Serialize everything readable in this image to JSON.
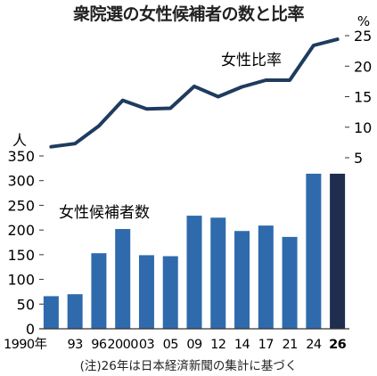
{
  "chart_data": {
    "type": "bar+line",
    "title": "衆院選の女性候補者の数と比率",
    "note": "(注)26年は日本経済新聞の集計に基づく",
    "categories": [
      "1990年",
      "93",
      "96",
      "2000",
      "03",
      "05",
      "09",
      "12",
      "14",
      "17",
      "21",
      "24",
      "26"
    ],
    "left_axis": {
      "unit": "人",
      "ylim": [
        0,
        350
      ],
      "ticks": [
        0,
        50,
        100,
        150,
        200,
        250,
        300,
        350
      ]
    },
    "right_axis": {
      "unit": "%",
      "ylim": [
        5,
        25
      ],
      "ticks": [
        5,
        10,
        15,
        20,
        25
      ]
    },
    "series": [
      {
        "name": "女性候補者数",
        "kind": "bar",
        "values": [
          66,
          70,
          153,
          202,
          149,
          147,
          229,
          225,
          198,
          209,
          186,
          314,
          314
        ],
        "color": "#2f6aad",
        "highlight_color": "#1f2d4e"
      },
      {
        "name": "女性比率",
        "kind": "line",
        "values": [
          6.8,
          7.3,
          10.2,
          14.4,
          13.0,
          13.1,
          16.7,
          15.0,
          16.6,
          17.7,
          17.7,
          23.4,
          24.4
        ],
        "color": "#1f3b5f"
      }
    ],
    "grid": false
  }
}
